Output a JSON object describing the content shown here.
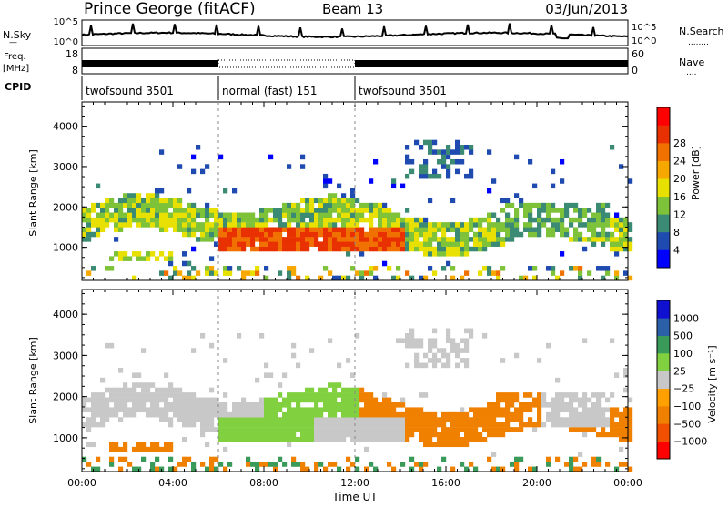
{
  "header": {
    "station": "Prince George (fitACF)",
    "beam": "Beam 13",
    "date": "03/Jun/2013"
  },
  "colors": {
    "power": [
      "#0000ff",
      "#1f4bb0",
      "#3a8a74",
      "#7ec23a",
      "#e8e000",
      "#f7a800",
      "#f07000",
      "#e83000",
      "#ff0000"
    ],
    "velocity": [
      "#ff0000",
      "#f05000",
      "#f08000",
      "#ffa000",
      "#c8c8c8",
      "#80d040",
      "#3a9a5a",
      "#2b5fa8",
      "#1010d0"
    ]
  },
  "sky_panel": {
    "left_label": "N.Sky",
    "right_label": "N.Search",
    "left_ticks": [
      "10^5",
      "10^0"
    ],
    "right_ticks": [
      "10^5",
      "10^0"
    ],
    "left_dash": "—",
    "right_dots": "........"
  },
  "freq_panel": {
    "left_label_top": "Freq.",
    "left_label_bottom": "[MHz]",
    "right_label": "Nave",
    "left_ticks": [
      "18",
      "8"
    ],
    "right_ticks": [
      "60",
      "0"
    ],
    "right_dots": "...."
  },
  "cpid_panel": {
    "label": "CPID",
    "segments": [
      {
        "label": "twofsound 3501",
        "start": 0,
        "end": 6
      },
      {
        "label": "normal (fast) 151",
        "start": 6,
        "end": 12
      },
      {
        "label": "twofsound 3501",
        "start": 12,
        "end": 24
      }
    ]
  },
  "chart_data": [
    {
      "type": "heatmap",
      "name": "power",
      "ylabel": "Slant Range [km]",
      "ylim": [
        180,
        4600
      ],
      "yticks": [
        "1000",
        "2000",
        "3000",
        "4000"
      ],
      "colorbar_label": "Power [dB]",
      "colorbar_ticks": [
        "4",
        "8",
        "12",
        "16",
        "20",
        "24",
        "28"
      ],
      "colorbar_range": [
        0,
        32
      ]
    },
    {
      "type": "heatmap",
      "name": "velocity",
      "ylabel": "Slant Range [km]",
      "ylim": [
        180,
        4600
      ],
      "yticks": [
        "1000",
        "2000",
        "3000",
        "4000"
      ],
      "colorbar_label": "Velocity [m s⁻¹]",
      "colorbar_ticks": [
        "1000",
        "500",
        "100",
        "25",
        "−25",
        "−100",
        "−500",
        "−1000"
      ]
    }
  ],
  "time_axis": {
    "xlabel": "Time UT",
    "xlim": [
      0,
      24
    ],
    "xticks": [
      "00:00",
      "04:00",
      "08:00",
      "12:00",
      "16:00",
      "20:00",
      "00:00"
    ]
  }
}
